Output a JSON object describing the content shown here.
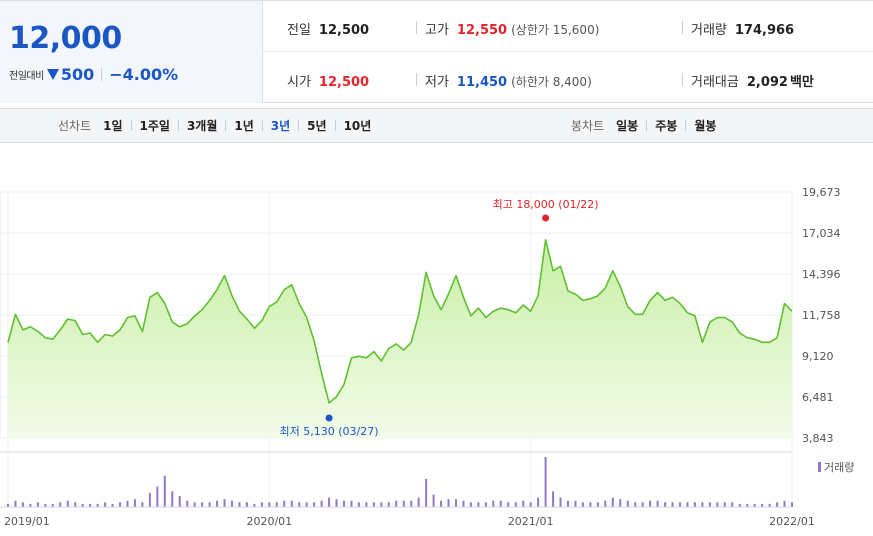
{
  "price": {
    "current": "12,000",
    "change_label": "전일대비",
    "change_value": "500",
    "change_rate": "−4.00%",
    "direction": "down"
  },
  "quote": {
    "prev": {
      "label": "전일",
      "value": "12,500"
    },
    "high": {
      "label": "고가",
      "value": "12,550",
      "sub": "(상한가 15,600)"
    },
    "volume": {
      "label": "거래량",
      "value": "174,966"
    },
    "open": {
      "label": "시가",
      "value": "12,500"
    },
    "low": {
      "label": "저가",
      "value": "11,450",
      "sub": "(하한가 8,400)"
    },
    "amount": {
      "label": "거래대금",
      "value": "2,092",
      "unit": "백만"
    }
  },
  "toolbar": {
    "line_title": "선차트",
    "line_periods": [
      "1일",
      "1주일",
      "3개월",
      "1년",
      "3년",
      "5년",
      "10년"
    ],
    "active_period": "3년",
    "candle_title": "봉차트",
    "candle_periods": [
      "일봉",
      "주봉",
      "월봉"
    ]
  },
  "colors": {
    "down": "#1a56c4",
    "up": "#e0262c",
    "line": "#5fc02e",
    "area_top": "#c8efa6",
    "area_bottom": "#f3fbe9",
    "volume": "#8e78c8"
  },
  "chart_data": {
    "type": "area",
    "x_start": "2019/01",
    "x_end": "2022/01",
    "x_ticks": [
      "2019/01",
      "2020/01",
      "2021/01",
      "2022/01"
    ],
    "y_ticks": [
      "19,673",
      "17,034",
      "14,396",
      "11,758",
      "9,120",
      "6,481",
      "3,843"
    ],
    "ylim": [
      3843,
      19673
    ],
    "series": [
      {
        "values": [
          10000,
          11800,
          10800,
          11000,
          10700,
          10300,
          10200,
          10800,
          11500,
          11400,
          10500,
          10600,
          10000,
          10500,
          10400,
          10800,
          11600,
          11700,
          10700,
          12900,
          13200,
          12500,
          11300,
          11000,
          11200,
          11700,
          12100,
          12700,
          13400,
          14300,
          13000,
          12000,
          11500,
          10900,
          11400,
          12300,
          12600,
          13400,
          13700,
          12500,
          11600,
          10100,
          8000,
          6100,
          6500,
          7300,
          9000,
          9100,
          9000,
          9400,
          8800,
          9600,
          9900,
          9500,
          10000,
          11800,
          14500,
          13000,
          12100,
          13100,
          14300,
          12900,
          11700,
          12200,
          11600,
          12000,
          12200,
          12100,
          11900,
          12400,
          12000,
          13000,
          16600,
          14600,
          14900,
          13300,
          13100,
          12700,
          12800,
          13000,
          13500,
          14600,
          13600,
          12300,
          11800,
          11800,
          12700,
          13200,
          12700,
          12900,
          12500,
          11900,
          11700,
          10000,
          11300,
          11600,
          11600,
          11300,
          10600,
          10300,
          10200,
          10000,
          10000,
          10300,
          12500,
          12000
        ]
      }
    ],
    "volume": {
      "name": "거래량",
      "values": [
        2,
        4,
        3,
        2,
        3,
        2,
        2,
        3,
        4,
        3,
        2,
        2,
        2,
        3,
        2,
        3,
        4,
        5,
        3,
        9,
        13,
        20,
        10,
        7,
        4,
        3,
        3,
        3,
        4,
        5,
        4,
        3,
        3,
        2,
        3,
        3,
        3,
        4,
        4,
        3,
        3,
        3,
        4,
        6,
        5,
        4,
        4,
        3,
        3,
        3,
        3,
        3,
        4,
        4,
        4,
        6,
        18,
        8,
        4,
        5,
        5,
        4,
        3,
        3,
        3,
        4,
        4,
        3,
        3,
        4,
        3,
        6,
        32,
        10,
        6,
        4,
        4,
        3,
        3,
        3,
        4,
        6,
        5,
        4,
        3,
        3,
        4,
        4,
        3,
        3,
        3,
        3,
        3,
        3,
        3,
        3,
        3,
        3,
        2,
        2,
        2,
        2,
        2,
        3,
        4,
        3
      ]
    },
    "annotations": {
      "high": {
        "label": "최고 18,000 (01/22)",
        "value": 18000
      },
      "low": {
        "label": "최저 5,130 (03/27)",
        "value": 5130
      }
    },
    "legend": {
      "position": "right"
    },
    "grid": true
  }
}
